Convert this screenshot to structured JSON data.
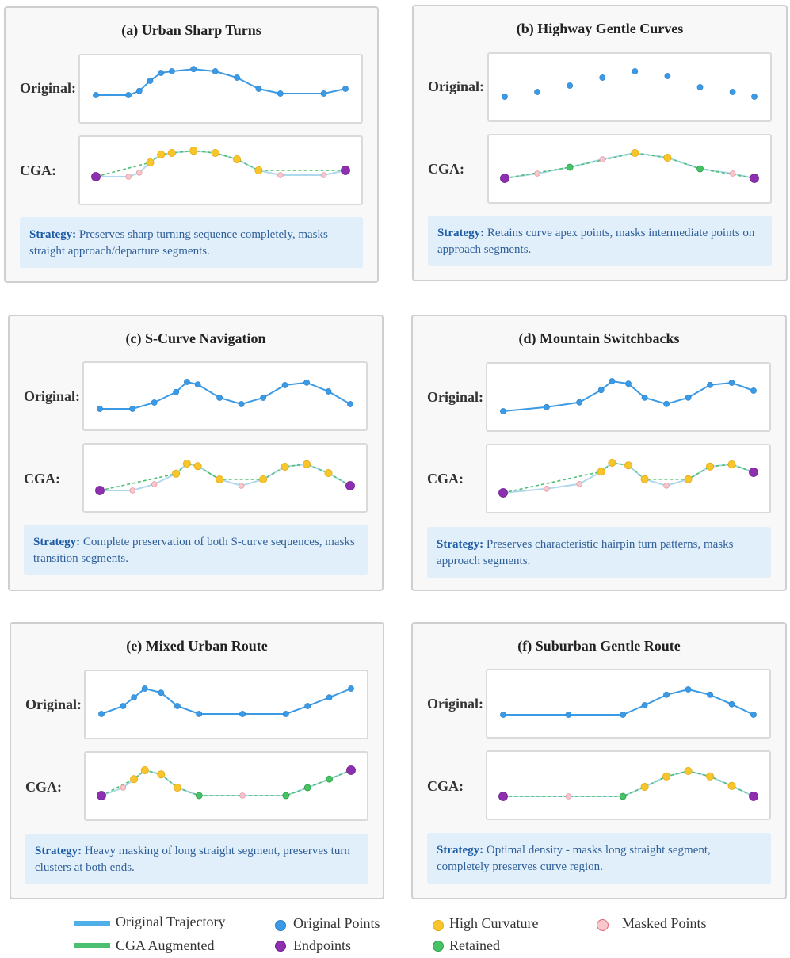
{
  "labels": {
    "original": "Original:",
    "cga": "CGA:",
    "strategy_prefix": "Strategy:"
  },
  "colors": {
    "original": "#3b9ae6",
    "high_curvature": "#f8c62c",
    "high_curvature_stroke": "#e3a90d",
    "masked_fill": "#f7c7cc",
    "masked_stroke": "#e39aa4",
    "endpoint": "#8e2fb0",
    "retained": "#46c465",
    "augmented_line": "#4cc070",
    "faded_line": "#aed8ec"
  },
  "panels": [
    {
      "id": "a",
      "title": "(a) Urban Sharp Turns",
      "show_original_line": true,
      "strategy": "Preserves sharp turning sequence completely, masks straight approach/departure segments.",
      "points": [
        {
          "x": 0,
          "y": 0.3,
          "t": "E"
        },
        {
          "x": 12,
          "y": 0.3,
          "t": "M"
        },
        {
          "x": 16,
          "y": 0.43,
          "t": "M"
        },
        {
          "x": 20,
          "y": 0.75,
          "t": "H"
        },
        {
          "x": 24,
          "y": 1.0,
          "t": "H"
        },
        {
          "x": 28,
          "y": 1.05,
          "t": "H"
        },
        {
          "x": 36,
          "y": 1.12,
          "t": "H"
        },
        {
          "x": 44,
          "y": 1.05,
          "t": "H"
        },
        {
          "x": 52,
          "y": 0.85,
          "t": "H"
        },
        {
          "x": 60,
          "y": 0.5,
          "t": "H"
        },
        {
          "x": 68,
          "y": 0.35,
          "t": "M"
        },
        {
          "x": 84,
          "y": 0.35,
          "t": "M"
        },
        {
          "x": 92,
          "y": 0.5,
          "t": "E"
        }
      ]
    },
    {
      "id": "b",
      "title": "(b) Highway Gentle Curves",
      "show_original_line": false,
      "strategy": "Retains curve apex points, masks intermediate points on approach segments.",
      "points": [
        {
          "x": 0,
          "y": 0.2,
          "t": "E"
        },
        {
          "x": 12,
          "y": 0.35,
          "t": "M"
        },
        {
          "x": 24,
          "y": 0.55,
          "t": "R"
        },
        {
          "x": 36,
          "y": 0.8,
          "t": "M"
        },
        {
          "x": 48,
          "y": 1.0,
          "t": "H"
        },
        {
          "x": 60,
          "y": 0.85,
          "t": "H"
        },
        {
          "x": 72,
          "y": 0.5,
          "t": "R"
        },
        {
          "x": 84,
          "y": 0.35,
          "t": "M"
        },
        {
          "x": 92,
          "y": 0.2,
          "t": "E"
        }
      ]
    },
    {
      "id": "c",
      "title": "(c) S-Curve Navigation",
      "show_original_line": true,
      "strategy": "Complete preservation of both S-curve sequences, masks transition segments.",
      "points": [
        {
          "x": 0,
          "y": 0.1,
          "t": "E"
        },
        {
          "x": 12,
          "y": 0.1,
          "t": "M"
        },
        {
          "x": 20,
          "y": 0.3,
          "t": "M"
        },
        {
          "x": 28,
          "y": 0.63,
          "t": "H"
        },
        {
          "x": 32,
          "y": 0.95,
          "t": "H"
        },
        {
          "x": 36,
          "y": 0.87,
          "t": "H"
        },
        {
          "x": 44,
          "y": 0.45,
          "t": "H"
        },
        {
          "x": 52,
          "y": 0.25,
          "t": "M"
        },
        {
          "x": 60,
          "y": 0.45,
          "t": "H"
        },
        {
          "x": 68,
          "y": 0.85,
          "t": "H"
        },
        {
          "x": 76,
          "y": 0.93,
          "t": "H"
        },
        {
          "x": 84,
          "y": 0.65,
          "t": "H"
        },
        {
          "x": 92,
          "y": 0.25,
          "t": "E"
        }
      ]
    },
    {
      "id": "d",
      "title": "(d) Mountain Switchbacks",
      "show_original_line": true,
      "strategy": "Preserves characteristic hairpin turn patterns, masks approach segments.",
      "points": [
        {
          "x": 0,
          "y": 0.05,
          "t": "E"
        },
        {
          "x": 16,
          "y": 0.18,
          "t": "M"
        },
        {
          "x": 28,
          "y": 0.33,
          "t": "M"
        },
        {
          "x": 36,
          "y": 0.72,
          "t": "H"
        },
        {
          "x": 40,
          "y": 1.0,
          "t": "H"
        },
        {
          "x": 46,
          "y": 0.92,
          "t": "H"
        },
        {
          "x": 52,
          "y": 0.48,
          "t": "H"
        },
        {
          "x": 60,
          "y": 0.28,
          "t": "M"
        },
        {
          "x": 68,
          "y": 0.48,
          "t": "H"
        },
        {
          "x": 76,
          "y": 0.88,
          "t": "H"
        },
        {
          "x": 84,
          "y": 0.95,
          "t": "H"
        },
        {
          "x": 92,
          "y": 0.7,
          "t": "E"
        }
      ]
    },
    {
      "id": "e",
      "title": "(e) Mixed Urban Route",
      "show_original_line": true,
      "strategy": "Heavy masking of long straight segment, preserves turn clusters at both ends.",
      "points": [
        {
          "x": 0,
          "y": 0.2,
          "t": "E"
        },
        {
          "x": 8,
          "y": 0.45,
          "t": "M"
        },
        {
          "x": 12,
          "y": 0.72,
          "t": "H"
        },
        {
          "x": 16,
          "y": 1.0,
          "t": "H"
        },
        {
          "x": 22,
          "y": 0.87,
          "t": "H"
        },
        {
          "x": 28,
          "y": 0.45,
          "t": "H"
        },
        {
          "x": 36,
          "y": 0.2,
          "t": "R"
        },
        {
          "x": 52,
          "y": 0.2,
          "t": "M"
        },
        {
          "x": 68,
          "y": 0.2,
          "t": "R"
        },
        {
          "x": 76,
          "y": 0.45,
          "t": "R"
        },
        {
          "x": 84,
          "y": 0.72,
          "t": "R"
        },
        {
          "x": 92,
          "y": 1.0,
          "t": "E"
        }
      ]
    },
    {
      "id": "f",
      "title": "(f) Suburban Gentle Route",
      "show_original_line": true,
      "strategy": "Optimal density - masks long straight segment, completely preserves curve region.",
      "points": [
        {
          "x": 0,
          "y": 0.15,
          "t": "E"
        },
        {
          "x": 24,
          "y": 0.15,
          "t": "M"
        },
        {
          "x": 44,
          "y": 0.15,
          "t": "R"
        },
        {
          "x": 52,
          "y": 0.45,
          "t": "H"
        },
        {
          "x": 60,
          "y": 0.78,
          "t": "H"
        },
        {
          "x": 68,
          "y": 0.95,
          "t": "H"
        },
        {
          "x": 76,
          "y": 0.78,
          "t": "H"
        },
        {
          "x": 84,
          "y": 0.48,
          "t": "H"
        },
        {
          "x": 92,
          "y": 0.15,
          "t": "E"
        }
      ]
    }
  ],
  "legend": {
    "original_trajectory": "Original Trajectory",
    "cga_augmented": "CGA Augmented",
    "original_points": "Original Points",
    "endpoints": "Endpoints",
    "high_curvature": "High Curvature",
    "retained": "Retained",
    "masked_points": "Masked Points"
  }
}
